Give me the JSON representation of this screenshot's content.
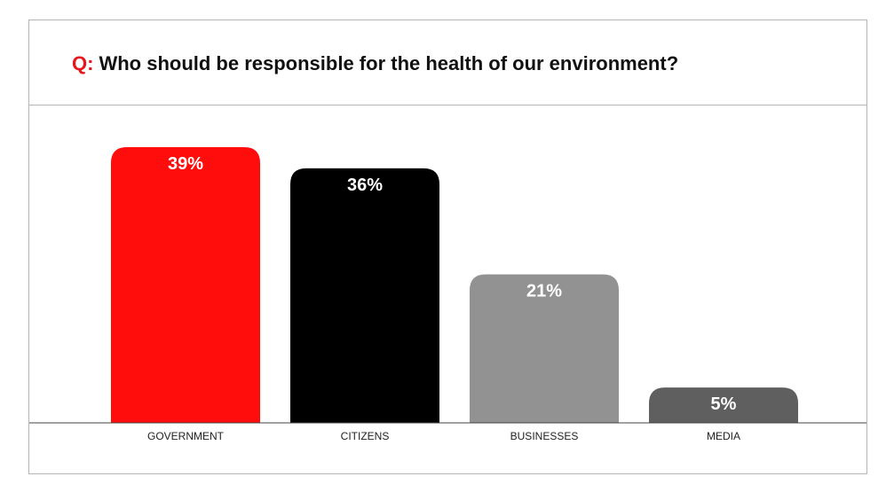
{
  "title": {
    "prefix": "Q:",
    "text": "Who should be responsible for the health of our environment?"
  },
  "chart_data": {
    "type": "bar",
    "title": "Q: Who should be responsible for the health of our environment?",
    "categories": [
      "GOVERNMENT",
      "CITIZENS",
      "BUSINESSES",
      "MEDIA"
    ],
    "values": [
      39,
      36,
      21,
      5
    ],
    "value_labels": [
      "39%",
      "36%",
      "21%",
      "5%"
    ],
    "unit": "%",
    "colors": [
      "#ff0d0d",
      "#000000",
      "#929292",
      "#5f5f5f"
    ],
    "ylim": [
      0,
      39
    ],
    "grid": false,
    "legend": "none"
  }
}
